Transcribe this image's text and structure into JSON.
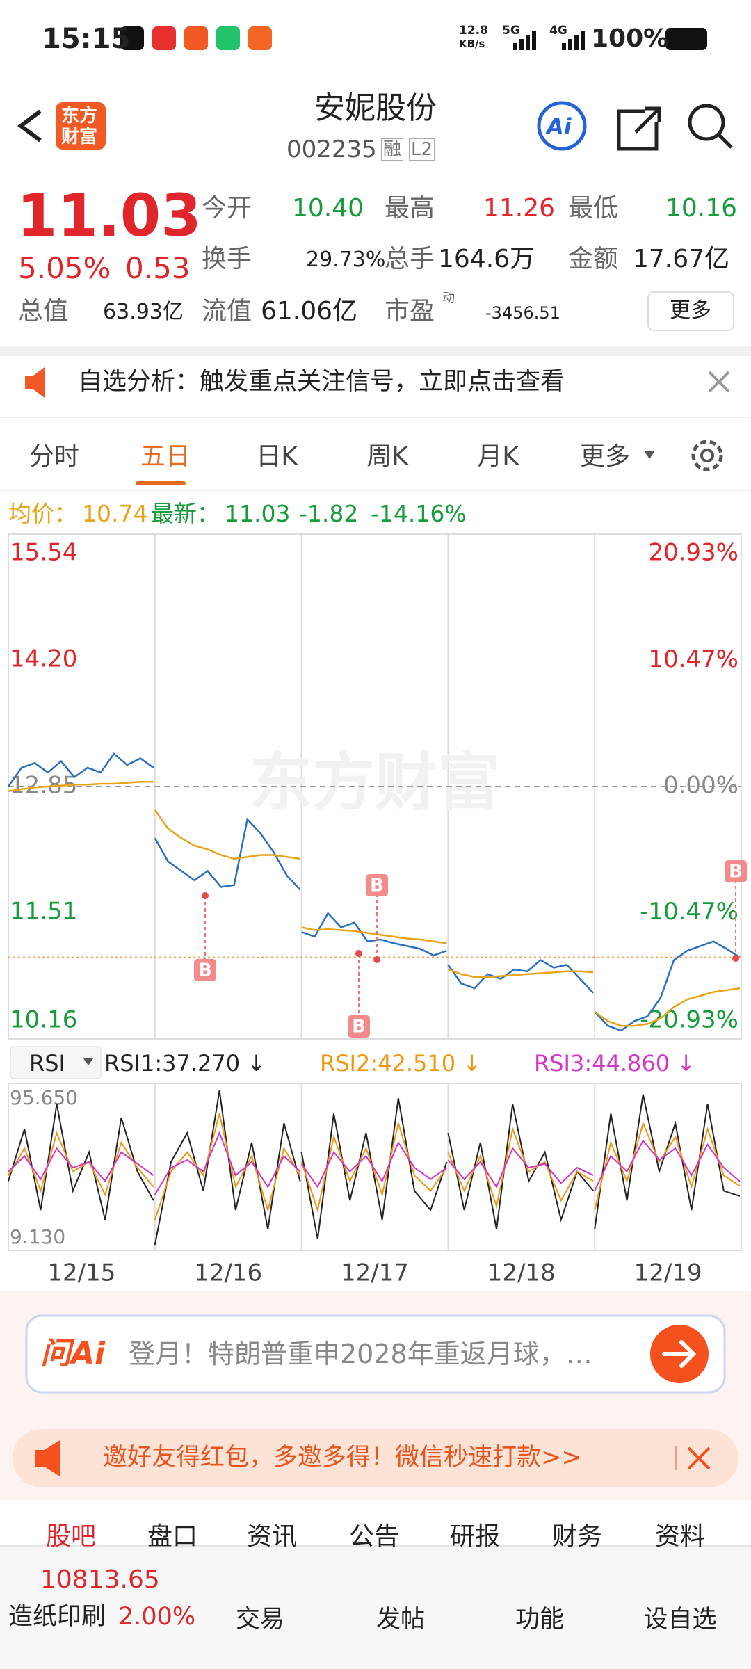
{
  "status_bar": {
    "time": "15:15",
    "net_speed": "12.8",
    "net_unit": "KB/s",
    "sim1": "5G",
    "sim2": "4G",
    "battery": "100%"
  },
  "header": {
    "logo": [
      "东方",
      "财富"
    ],
    "title": "安妮股份",
    "code": "002235",
    "tags": [
      "融",
      "L2"
    ],
    "ai": "Ai"
  },
  "quote": {
    "price": "11.03",
    "change_pct": "5.05%",
    "change": "0.53",
    "open_label": "今开",
    "open": "10.40",
    "high_label": "最高",
    "high": "11.26",
    "low_label": "最低",
    "low": "10.16",
    "turnover_label": "换手",
    "turnover": "29.73%",
    "volume_label": "总手",
    "volume": "164.6万",
    "amount_label": "金额",
    "amount": "17.67亿",
    "mcap_label": "总值",
    "mcap": "63.93亿",
    "float_label": "流值",
    "float": "61.06亿",
    "pe_label": "市盈",
    "pe_tag": "动",
    "pe": "-3456.51",
    "more": "更多"
  },
  "notice": {
    "text": "自选分析：触发重点关注信号，立即点击查看"
  },
  "tabs": [
    "分时",
    "五日",
    "日K",
    "周K",
    "月K",
    "更多"
  ],
  "legend_line": {
    "avg_label": "均价：",
    "avg": "10.74",
    "latest_label": "最新：",
    "latest": "11.03",
    "change": "-1.82",
    "change_pct": "-14.16%"
  },
  "chart_data": [
    {
      "type": "line",
      "watermark": "东方财富",
      "signals": [
        "B",
        "B",
        "B",
        "B"
      ],
      "ylim": [
        10.16,
        15.54
      ],
      "yticks": [
        15.54,
        {
          "value": 14.2,
          "label": "14.20"
        },
        12.85,
        11.51,
        10.16
      ],
      "y2lim": [
        -20.93,
        20.93
      ],
      "y2ticks": [
        {
          "value": 20.93,
          "label": "20.93%"
        },
        {
          "value": 10.47,
          "label": "10.47%"
        },
        {
          "value": 0,
          "label": "0.00%"
        },
        {
          "value": -10.47,
          "label": "-10.47%"
        },
        {
          "value": -20.93,
          "label": "-20.93%"
        }
      ],
      "series": [
        {
          "color": "#2a6fc0",
          "values": [
            [
              12.85,
              13.05,
              13.1,
              13.0,
              13.12,
              12.95,
              13.05,
              13.0,
              13.2,
              13.08,
              13.15,
              13.05
            ],
            [
              12.3,
              12.05,
              11.95,
              11.85,
              11.95,
              11.78,
              11.8,
              12.5,
              12.35,
              12.15,
              11.9,
              11.75
            ],
            [
              11.3,
              11.25,
              11.5,
              11.35,
              11.4,
              11.2,
              11.22,
              11.18,
              11.15,
              11.12,
              11.05,
              11.1
            ],
            [
              10.95,
              10.75,
              10.7,
              10.85,
              10.8,
              10.9,
              10.88,
              11.0,
              10.92,
              10.95,
              10.8,
              10.65
            ],
            [
              10.45,
              10.3,
              10.25,
              10.35,
              10.4,
              10.6,
              11.0,
              11.1,
              11.15,
              11.2,
              11.12,
              11.03
            ]
          ]
        },
        {
          "color": "#e8a317",
          "values": [
            [
              12.8,
              12.82,
              12.84,
              12.85,
              12.86,
              12.87,
              12.87,
              12.88,
              12.88,
              12.89,
              12.9,
              12.9
            ],
            [
              12.6,
              12.4,
              12.3,
              12.22,
              12.18,
              12.12,
              12.08,
              12.1,
              12.12,
              12.12,
              12.1,
              12.08
            ],
            [
              11.35,
              11.32,
              11.33,
              11.32,
              11.31,
              11.29,
              11.27,
              11.25,
              11.23,
              11.22,
              11.2,
              11.18
            ],
            [
              10.9,
              10.85,
              10.82,
              10.82,
              10.83,
              10.84,
              10.85,
              10.86,
              10.87,
              10.88,
              10.88,
              10.87
            ],
            [
              10.45,
              10.35,
              10.3,
              10.3,
              10.32,
              10.38,
              10.5,
              10.58,
              10.62,
              10.66,
              10.68,
              10.7
            ]
          ]
        }
      ]
    },
    {
      "type": "line",
      "title": "RSI",
      "categories": [
        "12/15",
        "12/16",
        "12/17",
        "12/18",
        "12/19"
      ],
      "ylim": [
        9.13,
        95.65
      ],
      "yticks": [
        {
          "value": 95.65,
          "label": "95.650"
        },
        {
          "value": 9.13,
          "label": "9.130"
        }
      ],
      "series": [
        {
          "name": "RSI1:37.270 ↓",
          "color": "#222222",
          "values": [
            [
              45,
              72,
              30,
              85,
              40,
              60,
              25,
              78,
              50,
              35
            ],
            [
              12,
              55,
              70,
              40,
              92,
              30,
              65,
              20,
              75,
              45
            ],
            [
              60,
              15,
              80,
              35,
              70,
              25,
              88,
              40,
              30,
              55
            ],
            [
              70,
              30,
              65,
              20,
              85,
              45,
              60,
              25,
              50,
              40
            ],
            [
              20,
              80,
              35,
              90,
              50,
              75,
              30,
              85,
              40,
              37.27
            ]
          ]
        },
        {
          "name": "RSI2:42.510 ↓",
          "color": "#f0960f",
          "values": [
            [
              48,
              62,
              40,
              70,
              50,
              55,
              38,
              65,
              52,
              42
            ],
            [
              25,
              50,
              60,
              48,
              80,
              42,
              58,
              30,
              62,
              48
            ],
            [
              55,
              30,
              68,
              45,
              62,
              38,
              75,
              48,
              40,
              52
            ],
            [
              60,
              40,
              58,
              32,
              72,
              50,
              55,
              35,
              50,
              45
            ],
            [
              30,
              65,
              45,
              75,
              55,
              68,
              42,
              72,
              48,
              42.51
            ]
          ]
        },
        {
          "name": "RSI3:44.860 ↓",
          "color": "#d633c8",
          "values": [
            [
              50,
              58,
              46,
              62,
              52,
              55,
              45,
              60,
              54,
              48
            ],
            [
              38,
              52,
              56,
              50,
              70,
              48,
              55,
              42,
              58,
              50
            ],
            [
              54,
              42,
              60,
              50,
              58,
              45,
              65,
              52,
              46,
              52
            ],
            [
              56,
              46,
              55,
              42,
              62,
              52,
              54,
              44,
              52,
              48
            ],
            [
              40,
              58,
              50,
              66,
              56,
              62,
              48,
              64,
              52,
              44.86
            ]
          ]
        }
      ]
    }
  ],
  "ai_search": {
    "logo": "问Ai",
    "placeholder": "登月！特朗普重申2028年重返月球，…"
  },
  "promo": {
    "text": "邀好友得红包，多邀多得！微信秒速打款>>"
  },
  "sub_tabs": [
    "股吧",
    "盘口",
    "资讯",
    "公告",
    "研报",
    "财务",
    "资料"
  ],
  "bottom_nav": {
    "index_value": "10813.65",
    "sector": "造纸印刷",
    "sector_change": "2.00%",
    "items": [
      "交易",
      "发帖",
      "功能",
      "设自选"
    ]
  }
}
